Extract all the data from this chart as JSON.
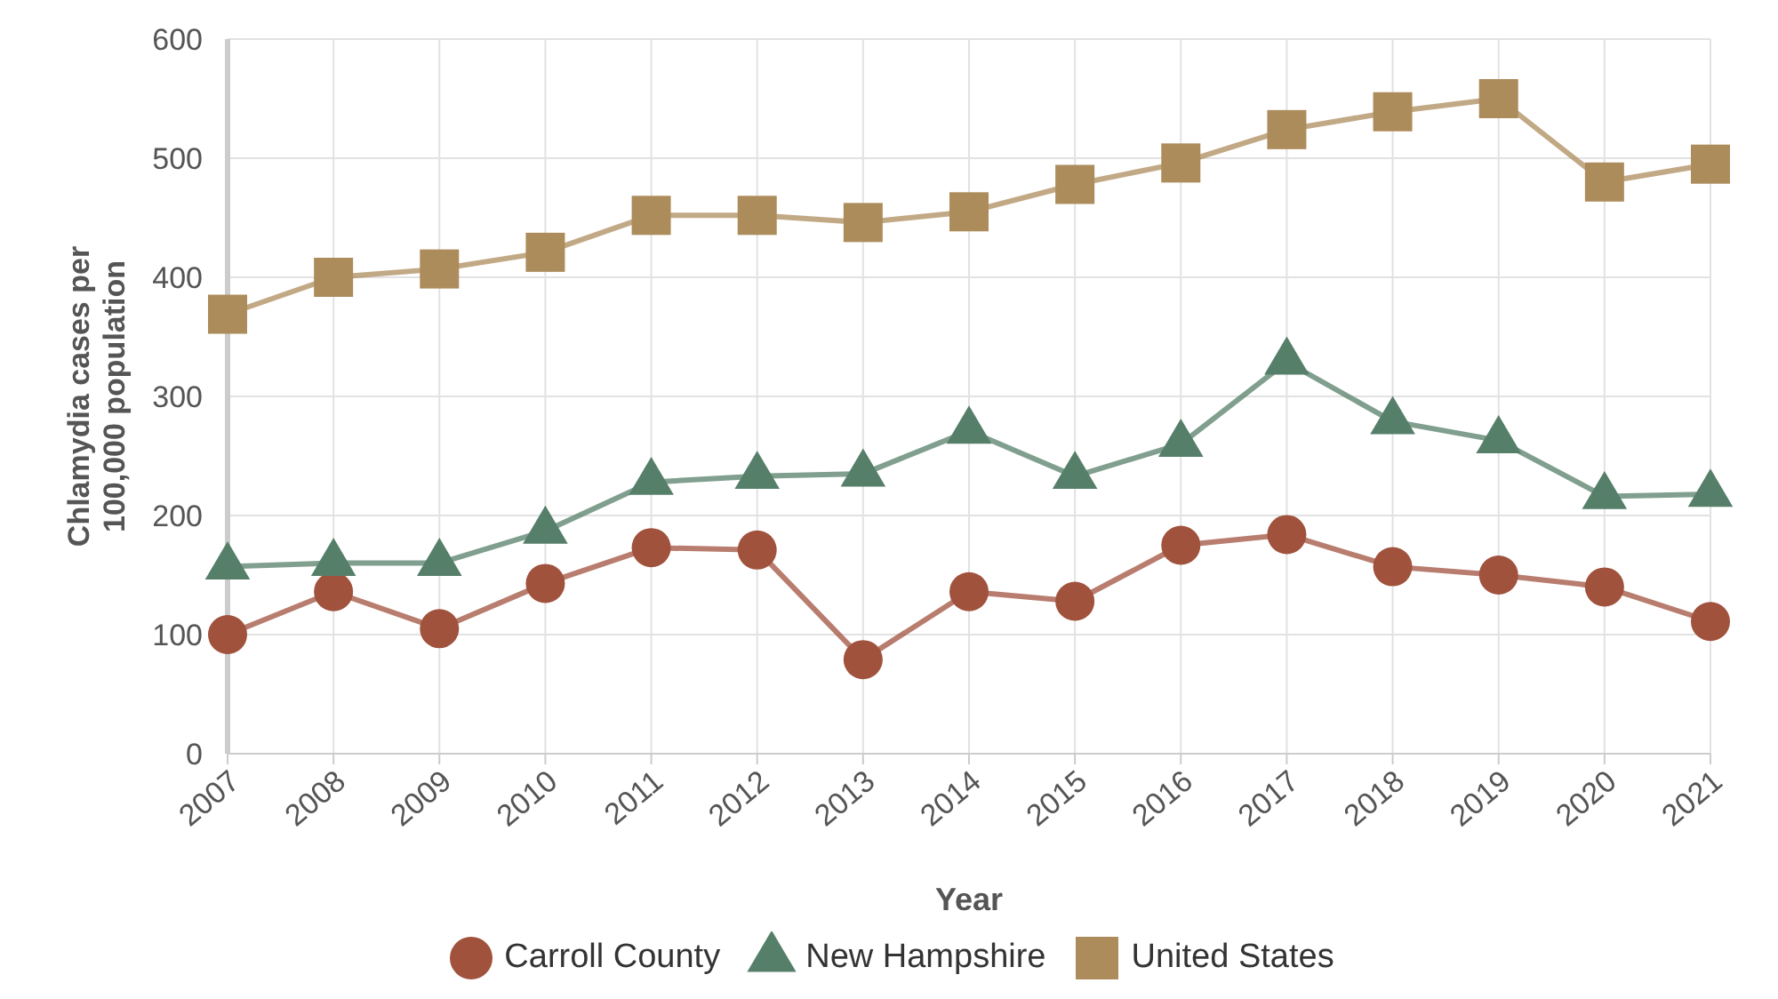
{
  "chart_data": {
    "type": "line",
    "xlabel": "Year",
    "ylabel": "Chlamydia cases per 100,000 population",
    "categories": [
      "2007",
      "2008",
      "2009",
      "2010",
      "2011",
      "2012",
      "2013",
      "2014",
      "2015",
      "2016",
      "2017",
      "2018",
      "2019",
      "2020",
      "2021"
    ],
    "series": [
      {
        "name": "Carroll County",
        "color": "#a0523d",
        "marker": "circle",
        "values": [
          100,
          136,
          105,
          143,
          173,
          171,
          79,
          136,
          128,
          175,
          184,
          157,
          150,
          140,
          111
        ]
      },
      {
        "name": "New Hampshire",
        "color": "#567f6a",
        "marker": "triangle",
        "values": [
          157,
          160,
          160,
          187,
          228,
          233,
          235,
          271,
          233,
          260,
          329,
          279,
          263,
          216,
          218
        ]
      },
      {
        "name": "United States",
        "color": "#ad8c5c",
        "marker": "square",
        "values": [
          369,
          400,
          407,
          421,
          452,
          452,
          446,
          455,
          478,
          496,
          524,
          539,
          550,
          480,
          495
        ]
      }
    ],
    "ylim": [
      0,
      600
    ],
    "yticks": [
      0,
      100,
      200,
      300,
      400,
      500,
      600
    ],
    "grid": true,
    "legend": "bottom"
  }
}
